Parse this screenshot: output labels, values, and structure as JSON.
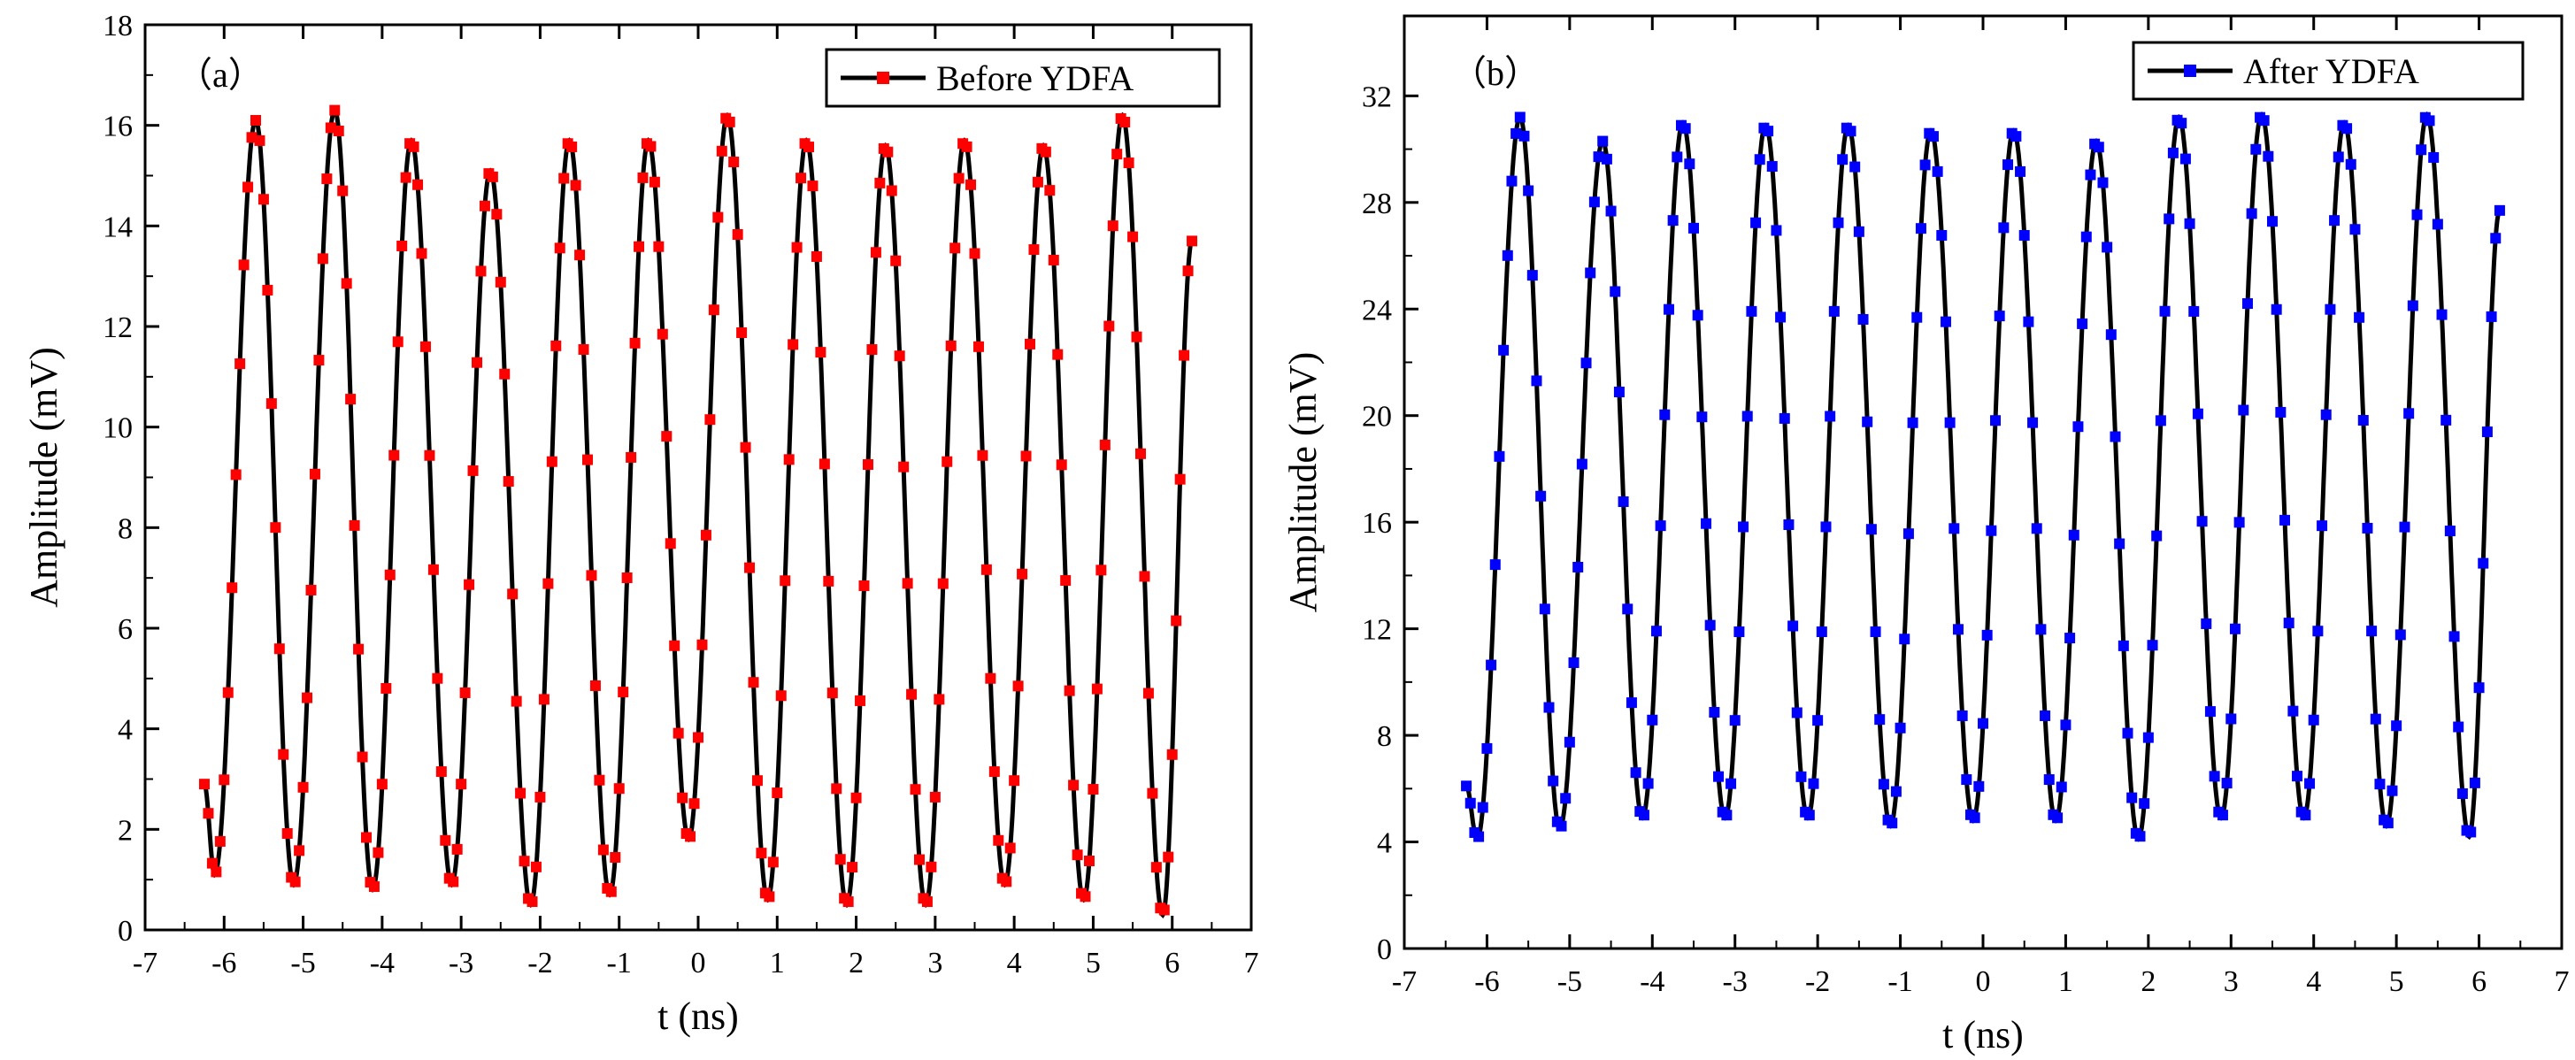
{
  "chart_data": [
    {
      "type": "line",
      "panel_label": "（a）",
      "xlabel": "t (ns)",
      "ylabel": "Amplitude (mV)",
      "xlim": [
        -7,
        7
      ],
      "ylim": [
        0,
        18
      ],
      "xticks": [
        -7,
        -6,
        -5,
        -4,
        -3,
        -2,
        -1,
        0,
        1,
        2,
        3,
        4,
        5,
        6,
        7
      ],
      "yticks": [
        0,
        2,
        4,
        6,
        8,
        10,
        12,
        14,
        16,
        18
      ],
      "legend_position": "top-right",
      "series": [
        {
          "name": "Before YDFA",
          "color": "#ff0000",
          "line_color": "#000000",
          "marker": "square",
          "t_start": -6.25,
          "t_end": 6.25,
          "start_value": 2.9,
          "end_value": 13.7,
          "peaks": [
            {
              "t": -5.6,
              "v": 16.1
            },
            {
              "t": -4.6,
              "v": 16.3
            },
            {
              "t": -3.63,
              "v": 15.7
            },
            {
              "t": -2.63,
              "v": 15.1
            },
            {
              "t": -1.63,
              "v": 15.7
            },
            {
              "t": -0.63,
              "v": 15.7
            },
            {
              "t": 0.37,
              "v": 16.2
            },
            {
              "t": 1.37,
              "v": 15.7
            },
            {
              "t": 2.37,
              "v": 15.6
            },
            {
              "t": 3.37,
              "v": 15.7
            },
            {
              "t": 4.37,
              "v": 15.6
            },
            {
              "t": 5.37,
              "v": 16.2
            }
          ],
          "troughs": [
            {
              "t": -6.12,
              "v": 1.1
            },
            {
              "t": -5.12,
              "v": 0.9
            },
            {
              "t": -4.12,
              "v": 0.8
            },
            {
              "t": -3.12,
              "v": 0.9
            },
            {
              "t": -2.12,
              "v": 0.5
            },
            {
              "t": -1.12,
              "v": 0.7
            },
            {
              "t": -0.12,
              "v": 1.8
            },
            {
              "t": 0.88,
              "v": 0.6
            },
            {
              "t": 1.88,
              "v": 0.5
            },
            {
              "t": 2.88,
              "v": 0.5
            },
            {
              "t": 3.88,
              "v": 0.9
            },
            {
              "t": 4.88,
              "v": 0.6
            },
            {
              "t": 5.88,
              "v": 0.3
            }
          ]
        }
      ]
    },
    {
      "type": "line",
      "panel_label": "（b）",
      "xlabel": "t (ns)",
      "ylabel": "Amplitude (mV)",
      "xlim": [
        -7,
        7
      ],
      "ylim": [
        0,
        35
      ],
      "xticks": [
        -7,
        -6,
        -5,
        -4,
        -3,
        -2,
        -1,
        0,
        1,
        2,
        3,
        4,
        5,
        6,
        7
      ],
      "yticks": [
        0,
        4,
        8,
        12,
        16,
        20,
        24,
        28,
        32
      ],
      "legend_position": "top-right",
      "series": [
        {
          "name": "After YDFA",
          "color": "#0000ff",
          "line_color": "#000000",
          "marker": "square",
          "t_start": -6.25,
          "t_end": 6.25,
          "start_value": 6.1,
          "end_value": 27.7,
          "peaks": [
            {
              "t": -5.6,
              "v": 31.2
            },
            {
              "t": -4.6,
              "v": 30.3
            },
            {
              "t": -3.63,
              "v": 31.0
            },
            {
              "t": -2.63,
              "v": 30.9
            },
            {
              "t": -1.63,
              "v": 30.9
            },
            {
              "t": -0.63,
              "v": 30.7
            },
            {
              "t": 0.37,
              "v": 30.7
            },
            {
              "t": 1.37,
              "v": 30.3
            },
            {
              "t": 2.37,
              "v": 31.2
            },
            {
              "t": 3.37,
              "v": 31.3
            },
            {
              "t": 4.37,
              "v": 31.0
            },
            {
              "t": 5.37,
              "v": 31.3
            }
          ],
          "troughs": [
            {
              "t": -6.12,
              "v": 4.1
            },
            {
              "t": -5.12,
              "v": 4.5
            },
            {
              "t": -4.12,
              "v": 4.9
            },
            {
              "t": -3.12,
              "v": 4.9
            },
            {
              "t": -2.12,
              "v": 4.9
            },
            {
              "t": -1.12,
              "v": 4.6
            },
            {
              "t": -0.12,
              "v": 4.8
            },
            {
              "t": 0.88,
              "v": 4.8
            },
            {
              "t": 1.88,
              "v": 4.1
            },
            {
              "t": 2.88,
              "v": 4.9
            },
            {
              "t": 3.88,
              "v": 4.9
            },
            {
              "t": 4.88,
              "v": 4.6
            },
            {
              "t": 5.88,
              "v": 4.2
            }
          ]
        }
      ]
    }
  ]
}
